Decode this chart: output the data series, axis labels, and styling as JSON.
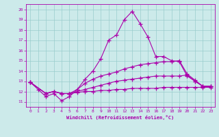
{
  "xlabel": "Windchill (Refroidissement éolien,°C)",
  "bg_color": "#cceaea",
  "line_color": "#aa00aa",
  "grid_color": "#99cccc",
  "xlim": [
    -0.5,
    23.5
  ],
  "ylim": [
    10.5,
    20.5
  ],
  "xticks": [
    0,
    1,
    2,
    3,
    4,
    5,
    6,
    7,
    8,
    9,
    10,
    11,
    12,
    13,
    14,
    15,
    16,
    17,
    18,
    19,
    20,
    21,
    22,
    23
  ],
  "yticks": [
    11,
    12,
    13,
    14,
    15,
    16,
    17,
    18,
    19,
    20
  ],
  "lines": [
    {
      "x": [
        0,
        1,
        2,
        3,
        4,
        5,
        6,
        7,
        8,
        9,
        10,
        11,
        12,
        13,
        14,
        15,
        16,
        17,
        18,
        19,
        20,
        21,
        22,
        23
      ],
      "y": [
        12.9,
        12.2,
        11.5,
        11.8,
        11.1,
        11.5,
        12.2,
        13.2,
        14.0,
        15.2,
        17.0,
        17.5,
        19.0,
        19.8,
        18.6,
        17.3,
        15.4,
        15.4,
        15.0,
        14.9,
        13.5,
        13.0,
        12.5,
        12.5
      ]
    },
    {
      "x": [
        0,
        2,
        3,
        4,
        5,
        6,
        7,
        8,
        9,
        10,
        11,
        12,
        13,
        14,
        15,
        16,
        17,
        18,
        19,
        20,
        21,
        22,
        23
      ],
      "y": [
        12.9,
        11.8,
        12.0,
        11.8,
        11.8,
        12.2,
        12.8,
        13.2,
        13.5,
        13.7,
        13.9,
        14.2,
        14.4,
        14.6,
        14.7,
        14.8,
        14.9,
        14.9,
        15.0,
        13.7,
        13.1,
        12.5,
        12.5
      ]
    },
    {
      "x": [
        0,
        2,
        3,
        4,
        5,
        6,
        7,
        8,
        9,
        10,
        11,
        12,
        13,
        14,
        15,
        16,
        17,
        18,
        19,
        20,
        21,
        22,
        23
      ],
      "y": [
        12.9,
        11.8,
        12.0,
        11.8,
        11.8,
        12.0,
        12.2,
        12.4,
        12.6,
        12.8,
        13.0,
        13.1,
        13.2,
        13.3,
        13.4,
        13.5,
        13.5,
        13.5,
        13.5,
        13.6,
        13.0,
        12.5,
        12.5
      ]
    },
    {
      "x": [
        0,
        2,
        3,
        4,
        5,
        6,
        7,
        8,
        9,
        10,
        11,
        12,
        13,
        14,
        15,
        16,
        17,
        18,
        19,
        20,
        21,
        22,
        23
      ],
      "y": [
        12.9,
        11.8,
        12.0,
        11.8,
        11.8,
        11.9,
        12.0,
        12.0,
        12.1,
        12.1,
        12.2,
        12.2,
        12.3,
        12.3,
        12.3,
        12.3,
        12.4,
        12.4,
        12.4,
        12.4,
        12.4,
        12.4,
        12.4
      ]
    }
  ]
}
